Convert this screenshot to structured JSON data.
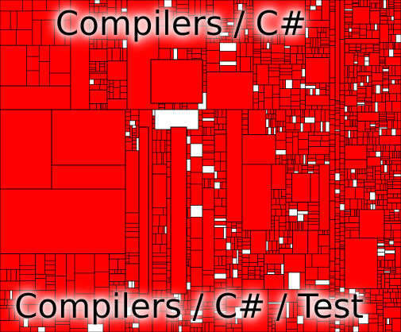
{
  "labels": {
    "top": "Compilers / C#",
    "bottom": "Compilers / C# / Test"
  }
}
